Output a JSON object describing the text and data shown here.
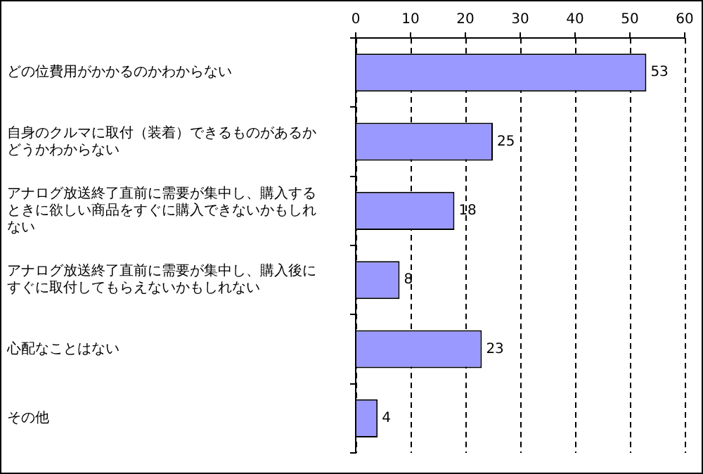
{
  "chart_data": {
    "type": "bar",
    "orientation": "horizontal",
    "categories": [
      "どの位費用がかかるのかわからない",
      "自身のクルマに取付（装着）できるものがあるかどうかわからない",
      "アナログ放送終了直前に需要が集中し、購入するときに欲しい商品をすぐに購入できないかもしれない",
      "アナログ放送終了直前に需要が集中し、購入後にすぐに取付してもらえないかもしれない",
      "心配なことはない",
      "その他"
    ],
    "values": [
      53,
      25,
      18,
      8,
      23,
      4
    ],
    "color": "#9999ff",
    "xlim": [
      0,
      60
    ],
    "xticks": [
      0,
      10,
      20,
      30,
      40,
      50,
      60
    ],
    "grid": "x",
    "data_labels": true,
    "legend": false
  }
}
